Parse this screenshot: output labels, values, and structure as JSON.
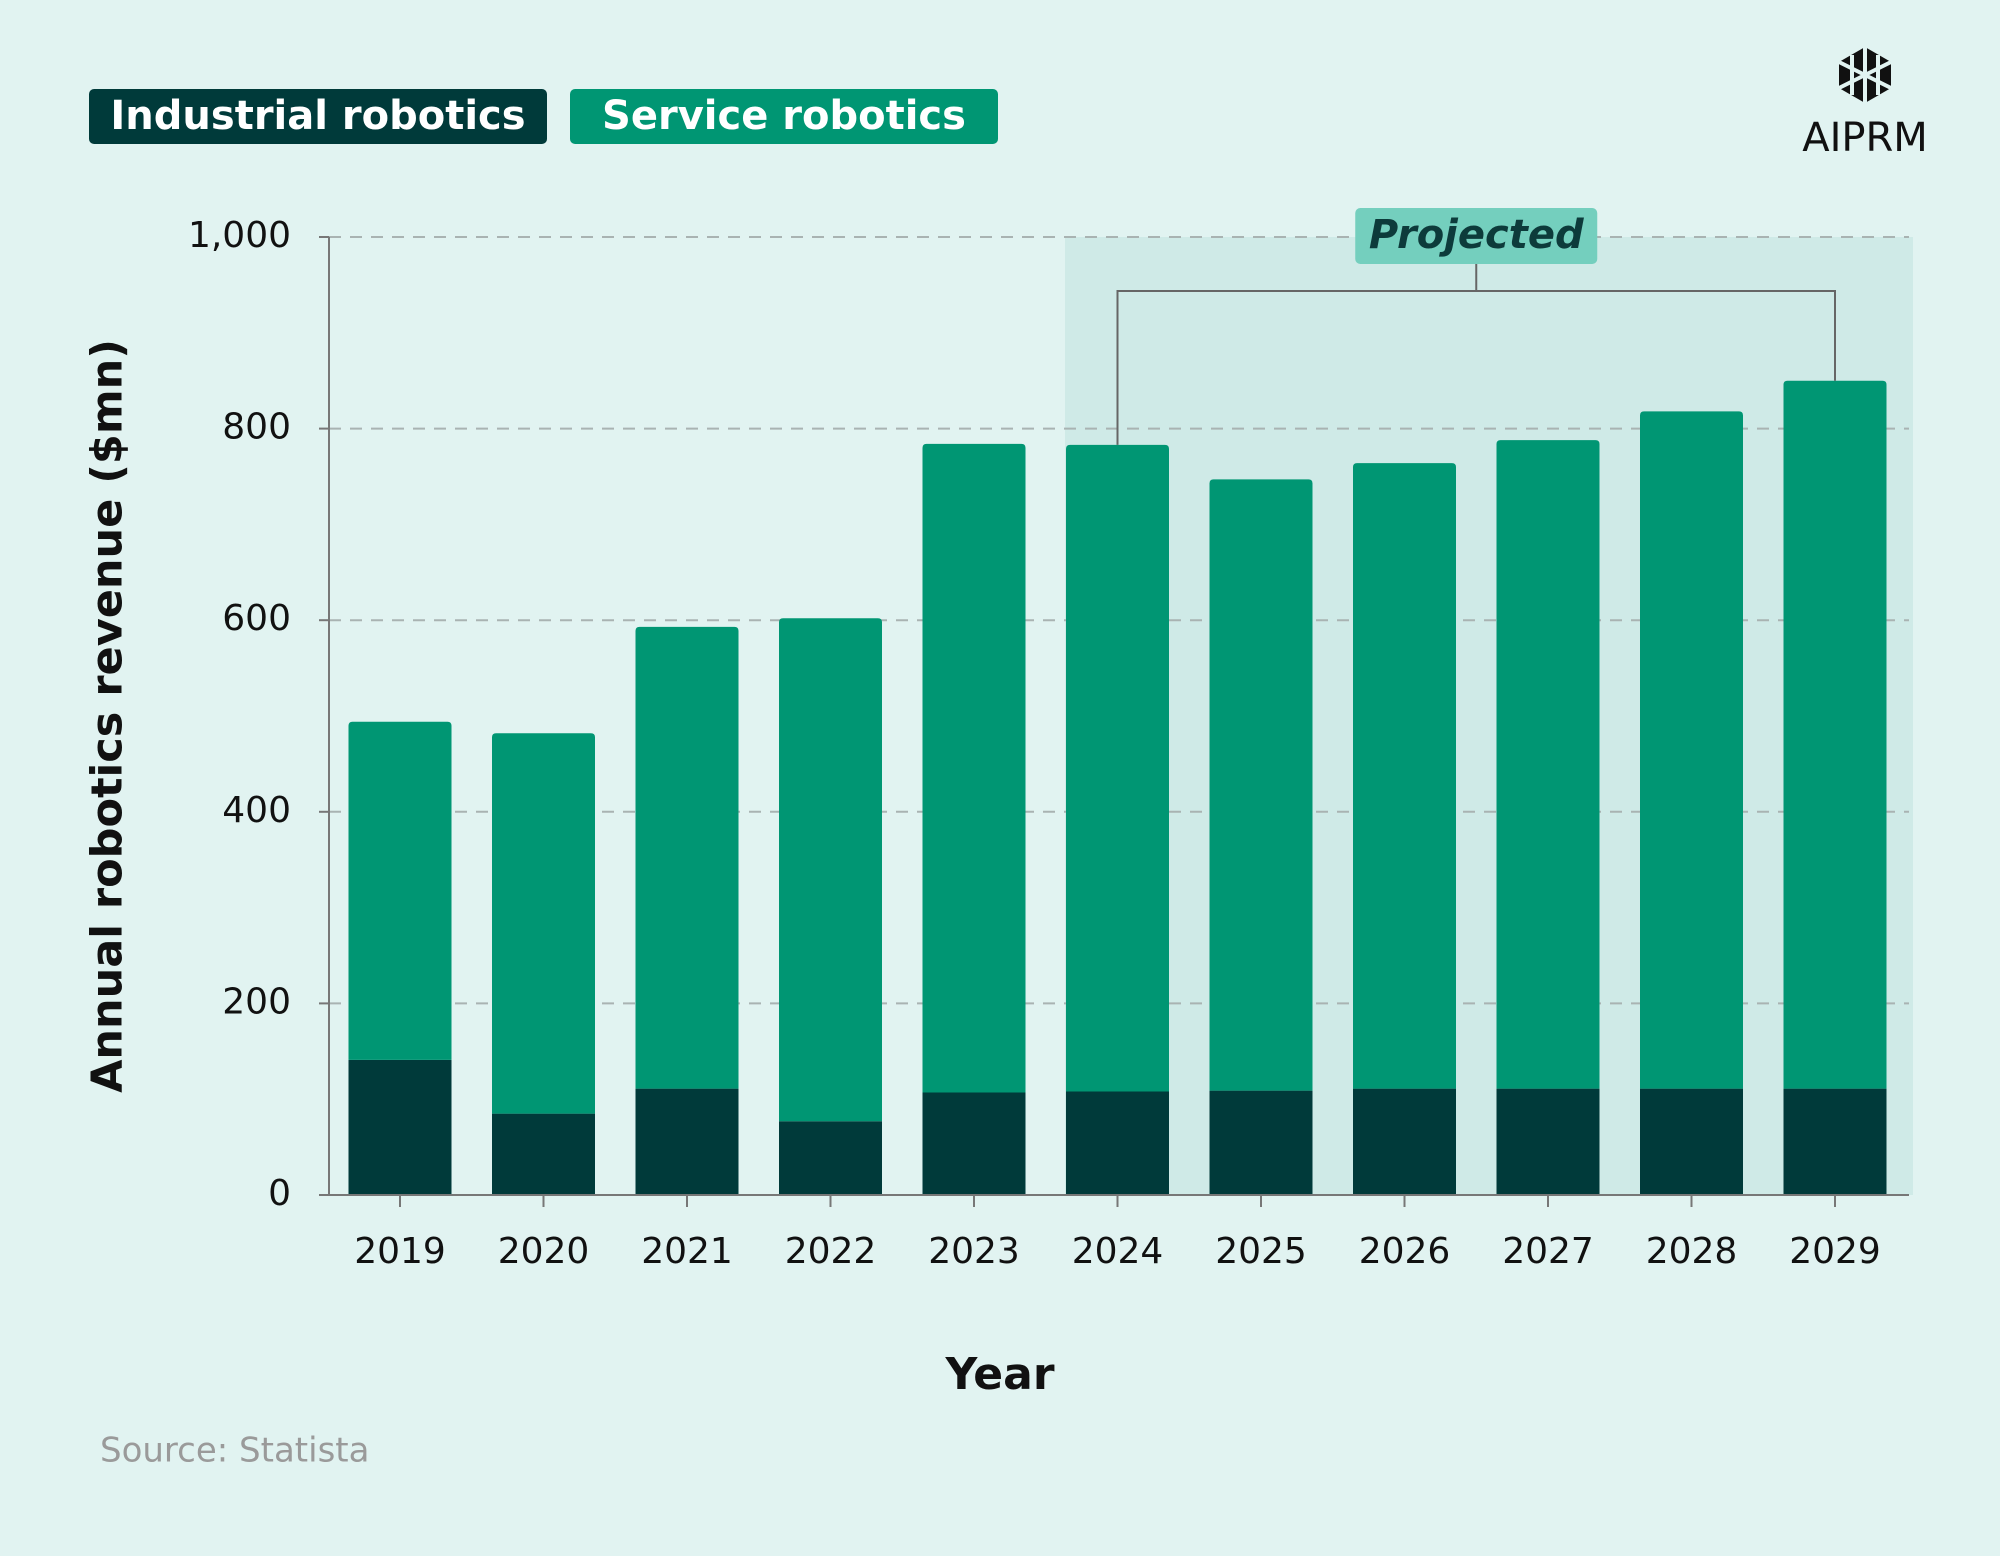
{
  "chart_data": {
    "type": "stacked_bar",
    "y_axis_label": "Annual robotics revenue ($mn)",
    "x_axis_label": "Year",
    "annotation": "Projected",
    "source": "Source: Statista",
    "logo": "AIPRM",
    "categories": [
      "2019",
      "2020",
      "2021",
      "2022",
      "2023",
      "2024",
      "2025",
      "2026",
      "2027",
      "2028",
      "2029"
    ],
    "series": [
      {
        "name": "Industrial robotics",
        "color": "#003a3a",
        "values": [
          141,
          85,
          111,
          77,
          107,
          108,
          109,
          111,
          111,
          111,
          111
        ]
      },
      {
        "name": "Service robotics",
        "color": "#009673",
        "values": [
          353,
          397,
          482,
          525,
          677,
          675,
          638,
          653,
          677,
          707,
          739
        ]
      }
    ],
    "ylim": [
      0,
      1000
    ],
    "yticks": [
      0,
      200,
      400,
      600,
      800,
      {
        "value": 1000,
        "label": "1,000"
      }
    ],
    "grid": true
  }
}
